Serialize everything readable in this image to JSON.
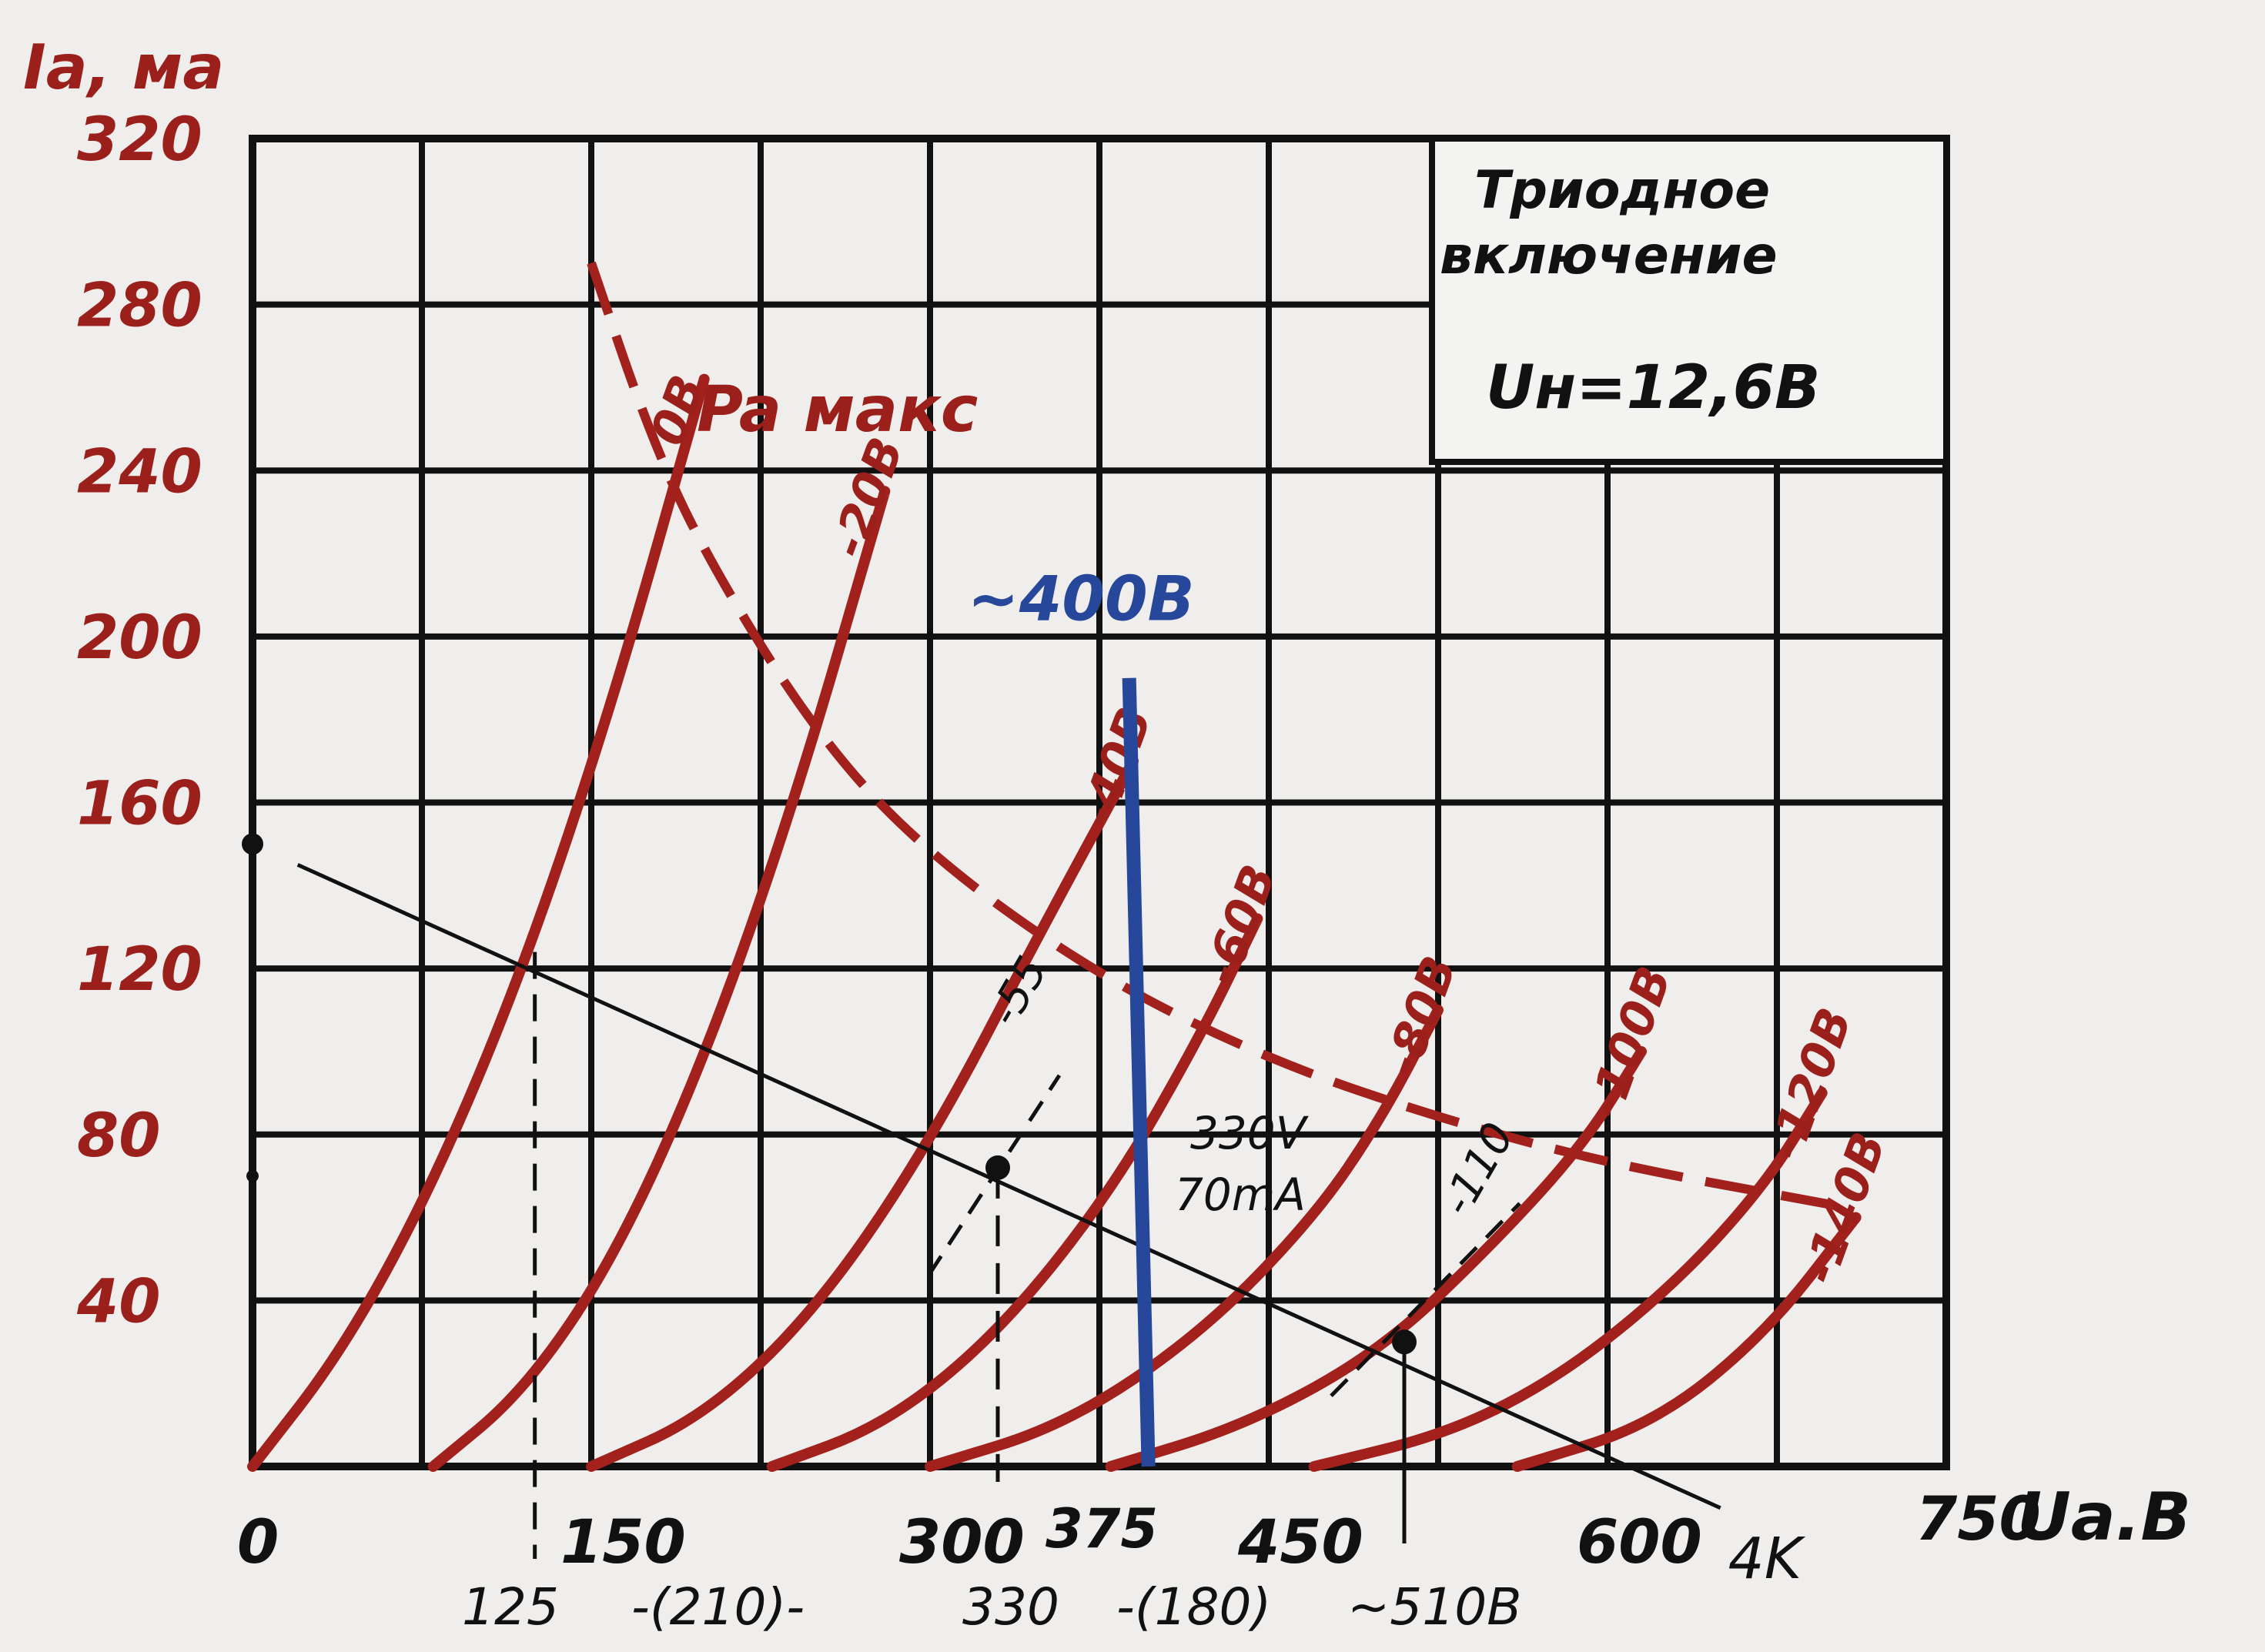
{
  "chart_data": {
    "type": "line",
    "y_axis_label": "Ia, мa",
    "x_axis_label": "Ua.B",
    "x_ticks": [
      0,
      150,
      300,
      450,
      600,
      750
    ],
    "x_tick_labels": [
      "0",
      "150",
      "300",
      "450",
      "600",
      "750"
    ],
    "y_ticks": [
      40,
      80,
      120,
      160,
      200,
      240,
      280,
      320
    ],
    "y_tick_labels": [
      "40",
      "80",
      "120",
      "160",
      "200",
      "240",
      "280",
      "320"
    ],
    "xlim": [
      0,
      750
    ],
    "ylim": [
      0,
      320
    ],
    "grid": true,
    "box_title_line1": "Триодное",
    "box_title_line2": "включение",
    "box_condition": "Uн=12,6B",
    "pmax_label": "Pa макс",
    "series": [
      {
        "name": "0B",
        "x": [
          0,
          40,
          80,
          120,
          160,
          200
        ],
        "y": [
          0,
          28,
          68,
          120,
          185,
          262
        ]
      },
      {
        "name": "-20B",
        "x": [
          80,
          120,
          160,
          200,
          240,
          280
        ],
        "y": [
          0,
          18,
          50,
          98,
          160,
          235
        ]
      },
      {
        "name": "-40B",
        "x": [
          150,
          200,
          250,
          300,
          350,
          390
        ],
        "y": [
          0,
          12,
          38,
          78,
          130,
          170
        ]
      },
      {
        "name": "-60B",
        "x": [
          230,
          280,
          330,
          380,
          420,
          445
        ],
        "y": [
          0,
          10,
          32,
          66,
          104,
          132
        ]
      },
      {
        "name": "-80B",
        "x": [
          300,
          360,
          420,
          470,
          500,
          525
        ],
        "y": [
          0,
          10,
          32,
          60,
          84,
          110
        ]
      },
      {
        "name": "-100B",
        "x": [
          380,
          440,
          500,
          550,
          590,
          615
        ],
        "y": [
          0,
          10,
          28,
          54,
          78,
          100
        ]
      },
      {
        "name": "-120B",
        "x": [
          470,
          530,
          580,
          630,
          670,
          695
        ],
        "y": [
          0,
          8,
          22,
          44,
          68,
          90
        ]
      },
      {
        "name": "-140B",
        "x": [
          560,
          620,
          670,
          710
        ],
        "y": [
          0,
          10,
          32,
          60
        ]
      }
    ],
    "pmax_curve": {
      "x": [
        150,
        175,
        200,
        250,
        300,
        375,
        450,
        525,
        600,
        700
      ],
      "y": [
        290,
        250,
        220,
        176,
        147,
        118,
        98,
        84,
        73,
        63
      ]
    },
    "load_line": {
      "x": [
        20,
        650
      ],
      "y": [
        145,
        -10
      ],
      "label": "4K"
    },
    "annotations": {
      "top_voltage": "~400B",
      "top_voltage_x": 395,
      "operating_point": {
        "x": 330,
        "y": 72,
        "label_line1": "330V",
        "label_line2": "70mA",
        "bias": "-55"
      },
      "point_510": {
        "x": 510,
        "y": 30,
        "bias": "-110"
      },
      "point_125": {
        "x": 125
      },
      "bottom_notes": [
        "125",
        "-(210)-",
        "330",
        "-(180)",
        "~510B"
      ],
      "extra_tick_label": "375",
      "x_label_300_note": "300,",
      "origin_mark_y": 150,
      "origin_mark_y2": 70
    },
    "colors": {
      "curve": "#a3211c",
      "grid": "#111111",
      "ink": "#111111",
      "blue": "#27489a",
      "label": "#9b1f1a"
    }
  }
}
